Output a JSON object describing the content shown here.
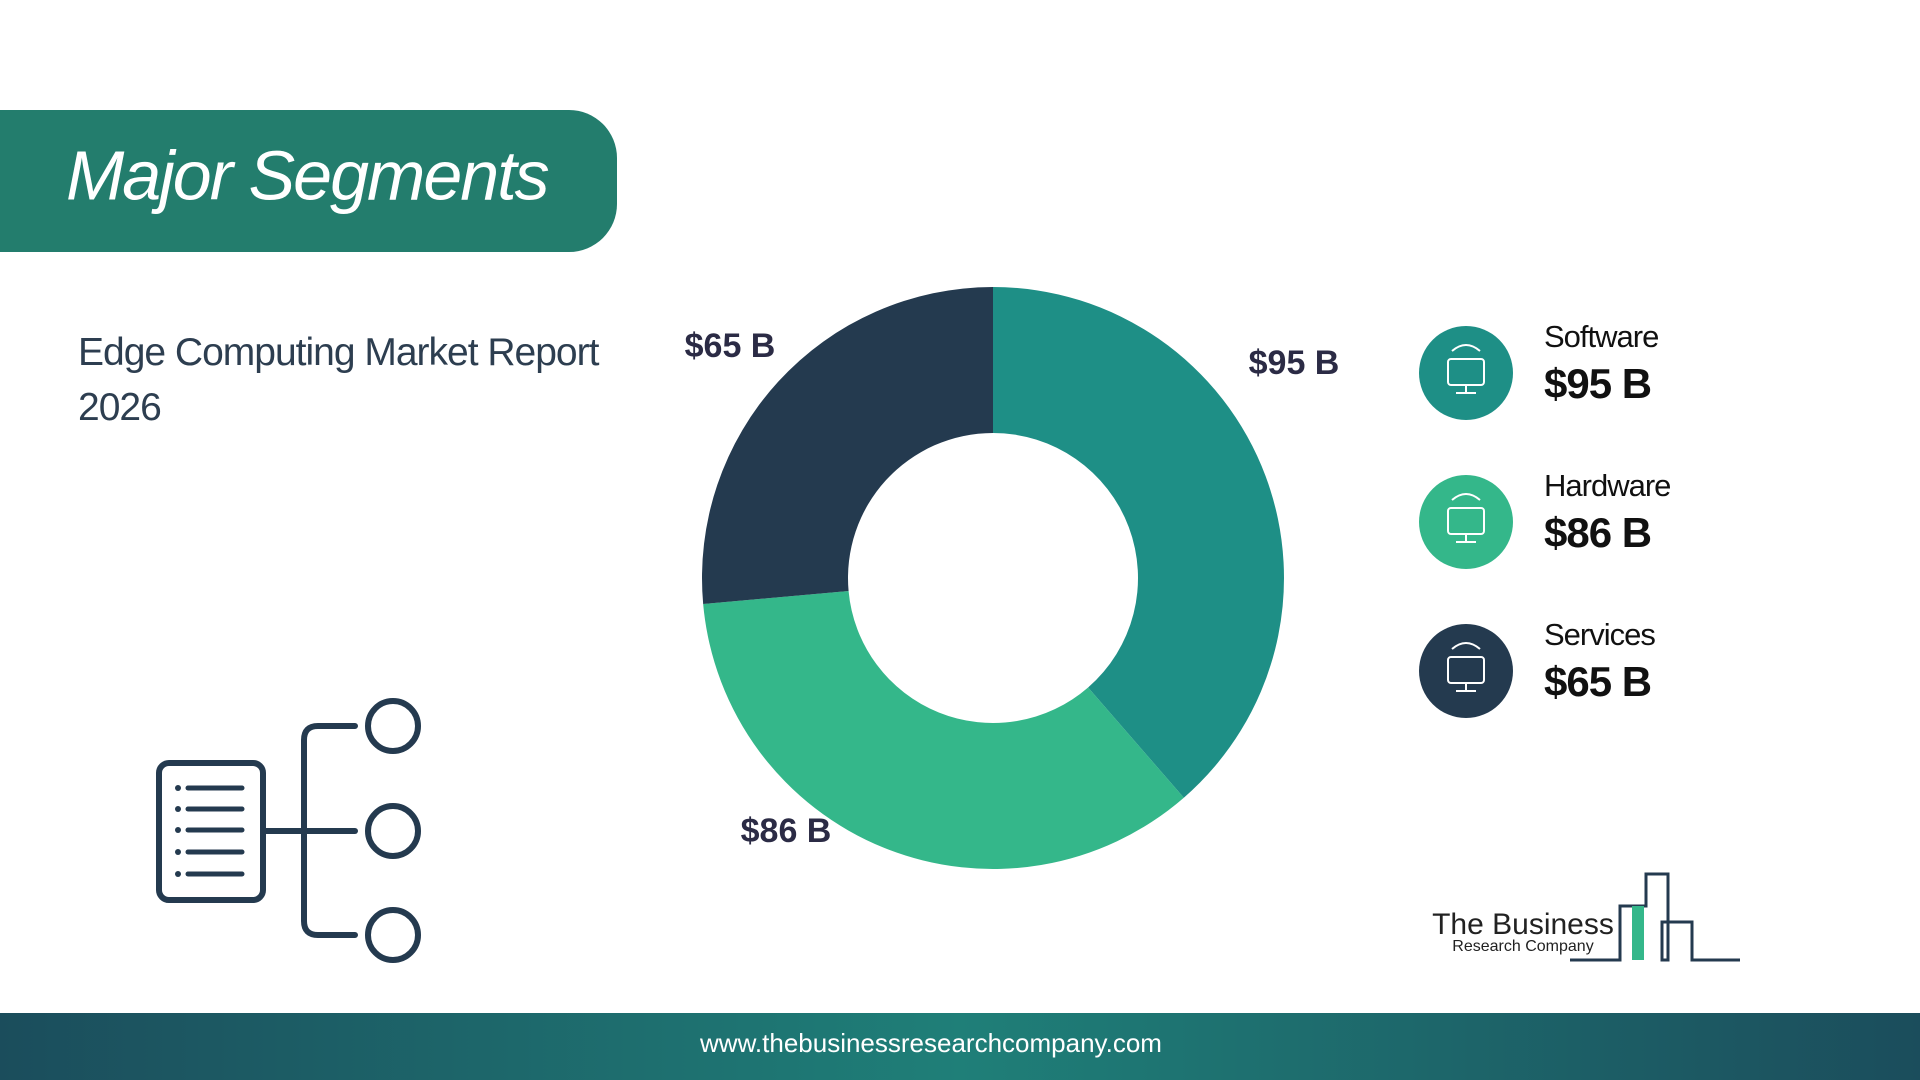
{
  "chart_data": {
    "type": "donut",
    "title": "Major Segments",
    "subtitle": "Edge Computing Market Report 2026",
    "categories": [
      "Software",
      "Hardware",
      "Services"
    ],
    "values": [
      95,
      86,
      65
    ],
    "value_labels": [
      "$95 B",
      "$86 B",
      "$65 B"
    ],
    "colors": [
      "#1e8f86",
      "#34b78a",
      "#243a4f"
    ]
  },
  "logo": {
    "line1": "The Business",
    "line2": "Research Company"
  },
  "footer": "www.thebusinessresearchcompany.com"
}
